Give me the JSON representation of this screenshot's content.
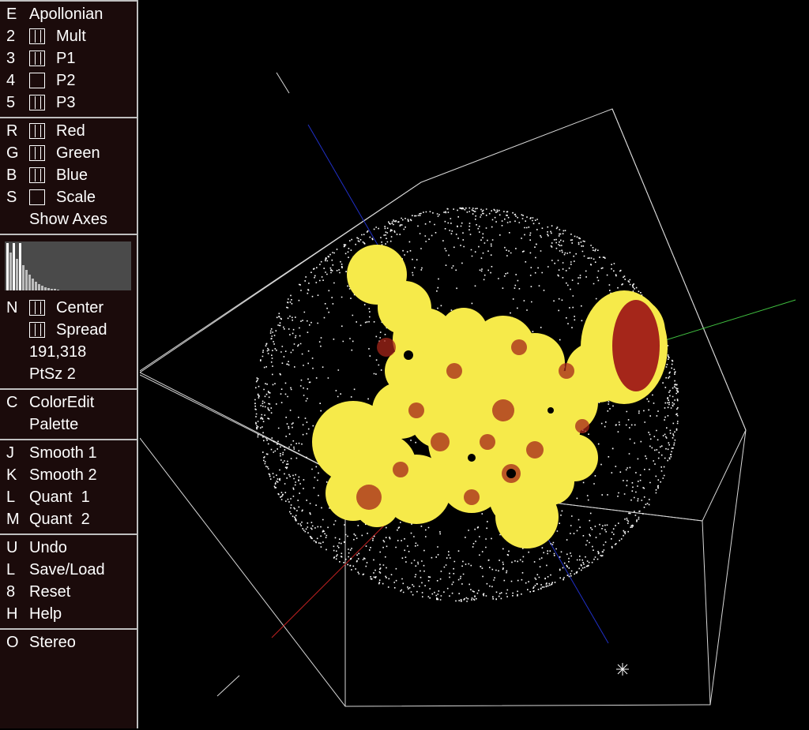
{
  "sidebar": {
    "section1": [
      {
        "key": "E",
        "label": "Apollonian"
      },
      {
        "key": "2",
        "label": "Mult"
      },
      {
        "key": "3",
        "label": "P1"
      },
      {
        "key": "4",
        "label": "P2"
      },
      {
        "key": "5",
        "label": "P3"
      }
    ],
    "section2": [
      {
        "key": "R",
        "label": "Red"
      },
      {
        "key": "G",
        "label": "Green"
      },
      {
        "key": "B",
        "label": "Blue"
      },
      {
        "key": "S",
        "label": "Scale"
      },
      {
        "key": "",
        "label": "Show Axes"
      }
    ],
    "section3": {
      "center": {
        "key": "N",
        "label": "Center"
      },
      "spread": {
        "label": "Spread"
      },
      "point_count": "191,318",
      "point_size": "PtSz 2"
    },
    "section4": [
      {
        "key": "C",
        "label": "ColorEdit"
      },
      {
        "key": "",
        "label": "Palette"
      }
    ],
    "section5": [
      {
        "key": "J",
        "label": "Smooth 1"
      },
      {
        "key": "K",
        "label": "Smooth 2"
      },
      {
        "key": "L",
        "label": "Quant  1"
      },
      {
        "key": "M",
        "label": "Quant  2"
      }
    ],
    "section6": [
      {
        "key": "U",
        "label": "Undo"
      },
      {
        "key": "L",
        "label": "Save/Load"
      },
      {
        "key": "8",
        "label": "Reset"
      },
      {
        "key": "H",
        "label": "Help"
      }
    ],
    "section7": [
      {
        "key": "O",
        "label": "Stereo"
      }
    ]
  },
  "colors": {
    "sidebar_bg": "#1b0b0b",
    "fractal_yellow": "#f6ea4a",
    "fractal_red": "#a5261a",
    "sphere_points": "#ffffff",
    "axis_blue": "#2030c8",
    "axis_green": "#40c040",
    "axis_red": "#c02020"
  }
}
